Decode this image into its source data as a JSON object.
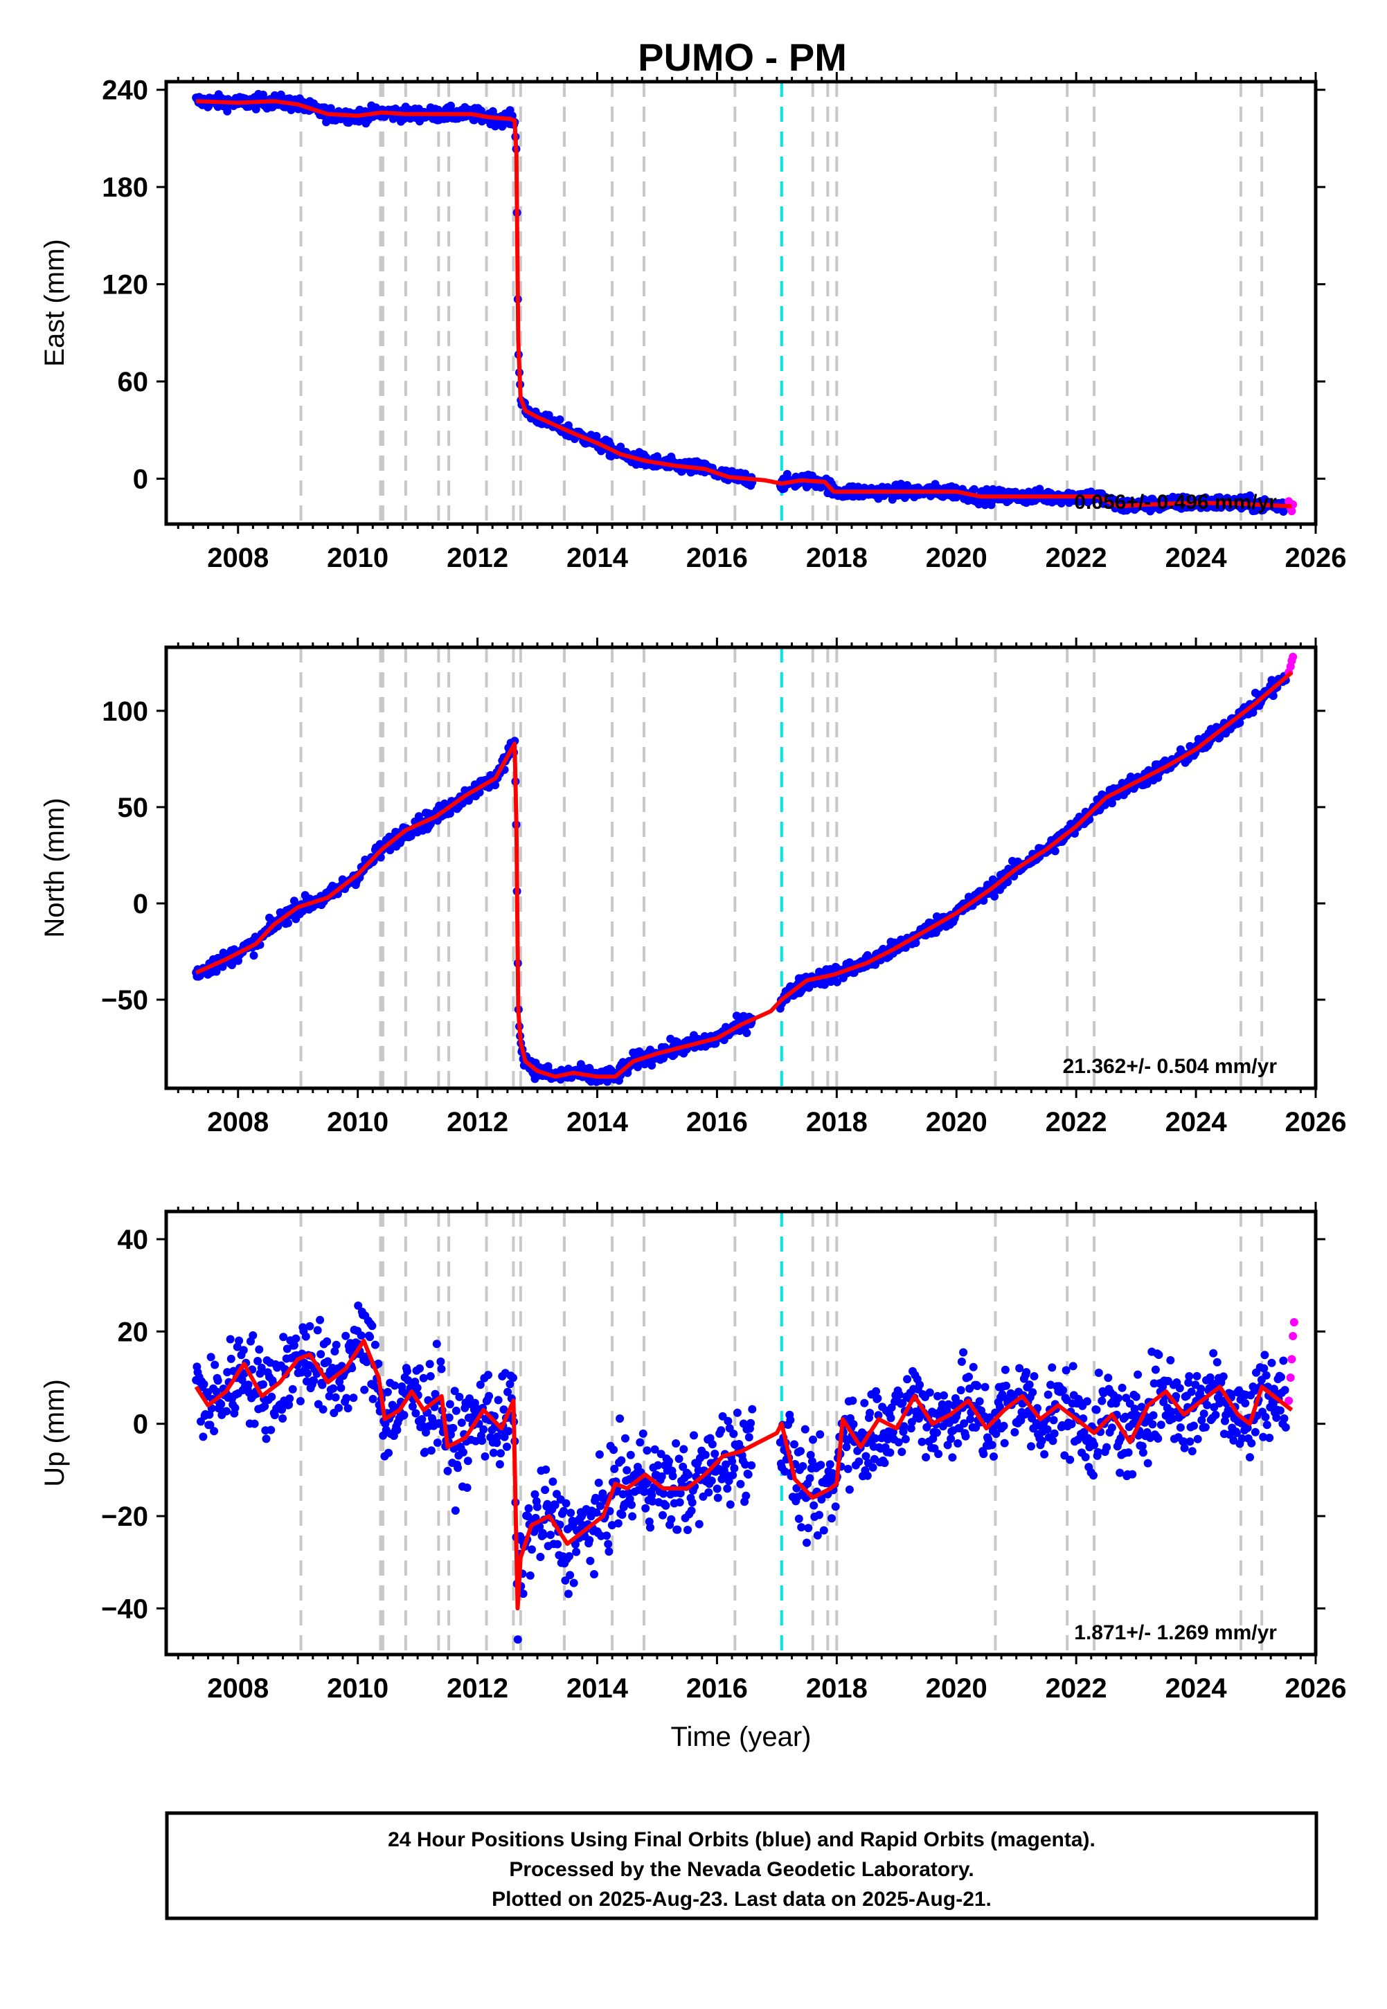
{
  "title": "PUMO - PM",
  "footer": {
    "lines": [
      "24 Hour Positions Using Final Orbits (blue) and Rapid Orbits (magenta).",
      "Processed by the Nevada Geodetic Laboratory.",
      "Plotted on 2025-Aug-23. Last data on 2025-Aug-21."
    ]
  },
  "colors": {
    "final_orbits": "#0000ff",
    "rapid_orbits": "#ff00ff",
    "model": "#ff0000",
    "equipment_change": "#c8c8c8",
    "earthquake": "#00e5e5",
    "frame": "#000000"
  },
  "chart_data": [
    {
      "type": "scatter",
      "component": "east",
      "ylabel": "East (mm)",
      "xlabel": "",
      "xlim": [
        2006.8,
        2026.0
      ],
      "ylim": [
        -28,
        245
      ],
      "yticks": [
        0,
        60,
        120,
        180,
        240
      ],
      "xticks": [
        2008,
        2010,
        2012,
        2014,
        2016,
        2018,
        2020,
        2022,
        2024,
        2026
      ],
      "rate_label": "0.056+/- 0.496 mm/yr",
      "grid": false,
      "model_line": {
        "x": [
          2007.3,
          2008.0,
          2008.6,
          2009.0,
          2009.5,
          2010.0,
          2010.4,
          2010.8,
          2011.4,
          2011.9,
          2012.2,
          2012.55,
          2012.62,
          2012.65,
          2012.68,
          2012.72,
          2012.8,
          2013.0,
          2013.3,
          2013.6,
          2014.0,
          2014.4,
          2014.8,
          2015.3,
          2015.8,
          2016.2,
          2016.8,
          2017.08,
          2017.4,
          2017.8,
          2017.95,
          2018.3,
          2018.8,
          2019.4,
          2020.0,
          2020.4,
          2020.65,
          2021.0,
          2021.5,
          2022.0,
          2022.35,
          2022.7,
          2023.2,
          2023.8,
          2024.5,
          2025.0,
          2025.6
        ],
        "y": [
          233,
          232,
          233,
          231,
          225,
          224,
          226,
          225,
          225,
          225,
          223,
          222,
          221,
          200,
          85,
          50,
          42,
          38,
          33,
          28,
          22,
          15,
          11,
          8,
          6,
          1,
          -1,
          -3,
          -1,
          -2,
          -8,
          -8,
          -8,
          -8,
          -8,
          -11,
          -11,
          -11,
          -11,
          -11,
          -11,
          -17,
          -16,
          -15,
          -15,
          -16,
          -17
        ]
      },
      "scatter_spread": 3,
      "rapid_points": {
        "x": [
          2025.55,
          2025.58,
          2025.6,
          2025.62
        ],
        "y": [
          -14,
          -18,
          -20,
          -16
        ]
      }
    },
    {
      "type": "scatter",
      "component": "north",
      "ylabel": "North (mm)",
      "xlabel": "",
      "xlim": [
        2006.8,
        2026.0
      ],
      "ylim": [
        -96,
        133
      ],
      "yticks": [
        -50,
        0,
        50,
        100
      ],
      "xticks": [
        2008,
        2010,
        2012,
        2014,
        2016,
        2018,
        2020,
        2022,
        2024,
        2026
      ],
      "rate_label": "21.362+/- 0.504 mm/yr",
      "grid": false,
      "model_line": {
        "x": [
          2007.3,
          2007.8,
          2008.3,
          2008.6,
          2009.0,
          2009.5,
          2010.0,
          2010.4,
          2010.8,
          2011.3,
          2011.8,
          2012.3,
          2012.62,
          2012.65,
          2012.68,
          2012.72,
          2012.8,
          2013.0,
          2013.3,
          2013.6,
          2014.0,
          2014.3,
          2014.6,
          2015.0,
          2015.5,
          2016.0,
          2016.4,
          2016.9,
          2017.08,
          2017.5,
          2017.95,
          2018.5,
          2019.0,
          2019.5,
          2020.0,
          2020.6,
          2021.0,
          2021.5,
          2022.0,
          2022.5,
          2023.0,
          2023.5,
          2024.0,
          2024.5,
          2025.0,
          2025.6
        ],
        "y": [
          -36,
          -29,
          -21,
          -11,
          -2,
          3,
          15,
          28,
          38,
          45,
          56,
          65,
          83,
          40,
          -55,
          -72,
          -82,
          -87,
          -90,
          -88,
          -90,
          -90,
          -82,
          -78,
          -74,
          -70,
          -63,
          -56,
          -50,
          -40,
          -37,
          -31,
          -23,
          -14,
          -5,
          8,
          18,
          28,
          40,
          55,
          63,
          71,
          80,
          92,
          104,
          120
        ]
      },
      "scatter_spread": 3,
      "rapid_points": {
        "x": [
          2025.55,
          2025.58,
          2025.6,
          2025.62
        ],
        "y": [
          120,
          123,
          126,
          128
        ]
      }
    },
    {
      "type": "scatter",
      "component": "up",
      "ylabel": "Up (mm)",
      "xlabel": "Time (year)",
      "xlim": [
        2006.8,
        2026.0
      ],
      "ylim": [
        -50,
        46
      ],
      "yticks": [
        -40,
        -20,
        0,
        20,
        40
      ],
      "xticks": [
        2008,
        2010,
        2012,
        2014,
        2016,
        2018,
        2020,
        2022,
        2024,
        2026
      ],
      "rate_label": "1.871+/- 1.269 mm/yr",
      "grid": false,
      "model_line": {
        "x": [
          2007.3,
          2007.5,
          2007.8,
          2008.1,
          2008.4,
          2008.7,
          2009.0,
          2009.2,
          2009.5,
          2009.8,
          2010.1,
          2010.35,
          2010.45,
          2010.7,
          2010.9,
          2011.1,
          2011.4,
          2011.5,
          2011.8,
          2012.1,
          2012.4,
          2012.6,
          2012.67,
          2012.72,
          2012.9,
          2013.2,
          2013.5,
          2013.8,
          2014.1,
          2014.3,
          2014.5,
          2014.8,
          2015.1,
          2015.5,
          2015.8,
          2016.1,
          2016.4,
          2016.7,
          2017.0,
          2017.08,
          2017.3,
          2017.6,
          2017.9,
          2018.0,
          2018.1,
          2018.4,
          2018.7,
          2019.0,
          2019.3,
          2019.6,
          2019.9,
          2020.2,
          2020.5,
          2020.8,
          2021.1,
          2021.4,
          2021.7,
          2022.0,
          2022.3,
          2022.6,
          2022.9,
          2023.2,
          2023.5,
          2023.8,
          2024.1,
          2024.4,
          2024.7,
          2024.9,
          2025.1,
          2025.3,
          2025.6
        ],
        "y": [
          8,
          4,
          7,
          13,
          6,
          9,
          14,
          15,
          9,
          12,
          18,
          10,
          1,
          3,
          7,
          3,
          6,
          -5,
          -3,
          3,
          -1,
          5,
          -40,
          -29,
          -22,
          -20,
          -26,
          -23,
          -20,
          -13,
          -14,
          -11,
          -14,
          -14,
          -11,
          -7,
          -6,
          -4,
          -2,
          0,
          -12,
          -16,
          -14,
          -13,
          1,
          -5,
          1,
          -1,
          6,
          0,
          2,
          5,
          -1,
          3,
          6,
          1,
          4,
          1,
          -2,
          2,
          -4,
          4,
          7,
          2,
          5,
          8,
          2,
          0,
          8,
          6,
          3
        ]
      },
      "scatter_spread": 7,
      "rapid_points": {
        "x": [
          2025.55,
          2025.58,
          2025.6,
          2025.62,
          2025.64
        ],
        "y": [
          5,
          10,
          14,
          19,
          22
        ]
      }
    }
  ],
  "equipment_changes": [
    2009.05,
    2010.38,
    2010.42,
    2010.8,
    2011.35,
    2011.52,
    2012.15,
    2012.6,
    2012.72,
    2013.45,
    2014.25,
    2014.78,
    2016.3,
    2017.6,
    2017.85,
    2018.0,
    2020.65,
    2021.85,
    2022.3,
    2024.75,
    2025.1
  ],
  "earthquakes": [
    2017.08
  ]
}
